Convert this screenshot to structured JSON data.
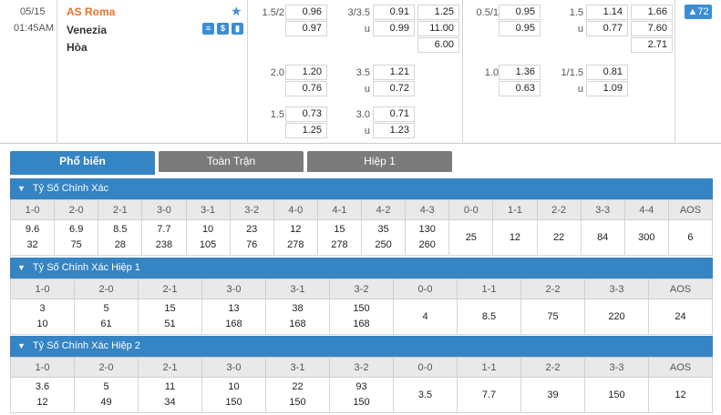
{
  "match": {
    "date": "05/15",
    "time": "01:45AM",
    "home": "AS Roma",
    "away": "Venezia",
    "draw": "Hòa",
    "icons": [
      "list-icon",
      "dollar-icon",
      "stats-icon"
    ],
    "more": "▲72"
  },
  "odds": {
    "ft_handicap": [
      {
        "line": "1.5/2",
        "a": "0.96",
        "b": "0.97"
      },
      {
        "line": "2.0",
        "a": "1.20",
        "b": "0.76"
      },
      {
        "line": "1.5",
        "a": "0.73",
        "b": "1.25"
      }
    ],
    "ft_ou": [
      {
        "line": "3/3.5",
        "o": "0.91",
        "u_label": "u",
        "u": "0.99"
      },
      {
        "line": "3.5",
        "o": "1.21",
        "u_label": "u",
        "u": "0.72"
      },
      {
        "line": "3.0",
        "o": "0.71",
        "u_label": "u",
        "u": "1.23"
      }
    ],
    "ft_1x2": [
      "1.25",
      "11.00",
      "6.00"
    ],
    "h1_handicap": [
      {
        "line": "0.5/1",
        "a": "0.95",
        "b": "0.95"
      },
      {
        "line": "1.0",
        "a": "1.36",
        "b": "0.63"
      }
    ],
    "h1_ou": [
      {
        "line": "1.5",
        "o": "1.14",
        "u_label": "u",
        "u": "0.77"
      },
      {
        "line": "1/1.5",
        "o": "0.81",
        "u_label": "u",
        "u": "1.09"
      }
    ],
    "h1_1x2": [
      "1.66",
      "7.60",
      "2.71"
    ]
  },
  "tabs": [
    "Phổ biến",
    "Toàn Trận",
    "Hiệp 1"
  ],
  "sections": [
    {
      "title": "Tỷ Số Chính Xác",
      "headers": [
        "1-0",
        "2-0",
        "2-1",
        "3-0",
        "3-1",
        "3-2",
        "4-0",
        "4-1",
        "4-2",
        "4-3",
        "0-0",
        "1-1",
        "2-2",
        "3-3",
        "4-4",
        "AOS"
      ],
      "cells": [
        [
          "9.6",
          "32"
        ],
        [
          "6.9",
          "75"
        ],
        [
          "8.5",
          "28"
        ],
        [
          "7.7",
          "238"
        ],
        [
          "10",
          "105"
        ],
        [
          "23",
          "76"
        ],
        [
          "12",
          "278"
        ],
        [
          "15",
          "278"
        ],
        [
          "35",
          "250"
        ],
        [
          "130",
          "260"
        ],
        [
          "25"
        ],
        [
          "12"
        ],
        [
          "22"
        ],
        [
          "84"
        ],
        [
          "300"
        ],
        [
          "6"
        ]
      ]
    },
    {
      "title": "Tỷ Số Chính Xác Hiệp 1",
      "headers": [
        "1-0",
        "2-0",
        "2-1",
        "3-0",
        "3-1",
        "3-2",
        "0-0",
        "1-1",
        "2-2",
        "3-3",
        "AOS"
      ],
      "cells": [
        [
          "3",
          "10"
        ],
        [
          "5",
          "61"
        ],
        [
          "15",
          "51"
        ],
        [
          "13",
          "168"
        ],
        [
          "38",
          "168"
        ],
        [
          "150",
          "168"
        ],
        [
          "4"
        ],
        [
          "8.5"
        ],
        [
          "75"
        ],
        [
          "220"
        ],
        [
          "24"
        ]
      ]
    },
    {
      "title": "Tỷ Số Chính Xác Hiệp 2",
      "headers": [
        "1-0",
        "2-0",
        "2-1",
        "3-0",
        "3-1",
        "3-2",
        "0-0",
        "1-1",
        "2-2",
        "3-3",
        "AOS"
      ],
      "cells": [
        [
          "3.6",
          "12"
        ],
        [
          "5",
          "49"
        ],
        [
          "11",
          "34"
        ],
        [
          "10",
          "150"
        ],
        [
          "22",
          "150"
        ],
        [
          "93",
          "150"
        ],
        [
          "3.5"
        ],
        [
          "7.7"
        ],
        [
          "39"
        ],
        [
          "150"
        ],
        [
          "12"
        ]
      ]
    }
  ]
}
